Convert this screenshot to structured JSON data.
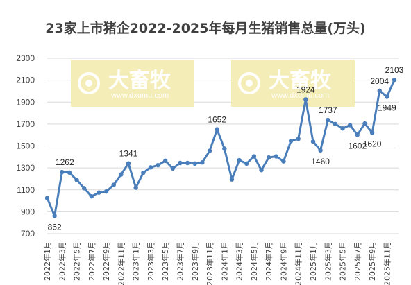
{
  "chart_data": {
    "type": "line",
    "title": "23家上市猪企2022-2025年每月生猪销售总量(万头)",
    "xlabel": "",
    "ylabel": "",
    "ylim": [
      700,
      2300
    ],
    "yticks": [
      700,
      900,
      1100,
      1300,
      1500,
      1700,
      1900,
      2100,
      2300
    ],
    "grid": true,
    "x_tick_labels": [
      "2022年1月",
      "2022年3月",
      "2022年5月",
      "2022年7月",
      "2022年9月",
      "2022年11月",
      "2023年1月",
      "2023年3月",
      "2023年5月",
      "2023年7月",
      "2023年9月",
      "2023年11月",
      "2024年1月",
      "2024年3月",
      "2024年5月",
      "2024年7月",
      "2024年9月",
      "2024年11月",
      "2025年1月",
      "2025年3月",
      "2025年5月",
      "2025年7月",
      "2025年9月",
      "2025年11月"
    ],
    "x": [
      "2022-01",
      "2022-02",
      "2022-03",
      "2022-04",
      "2022-05",
      "2022-06",
      "2022-07",
      "2022-08",
      "2022-09",
      "2022-10",
      "2022-11",
      "2022-12",
      "2023-01",
      "2023-02",
      "2023-03",
      "2023-04",
      "2023-05",
      "2023-06",
      "2023-07",
      "2023-08",
      "2023-09",
      "2023-10",
      "2023-11",
      "2023-12",
      "2024-01",
      "2024-02",
      "2024-03",
      "2024-04",
      "2024-05",
      "2024-06",
      "2024-07",
      "2024-08",
      "2024-09",
      "2024-10",
      "2024-11",
      "2024-12",
      "2025-01",
      "2025-02",
      "2025-03",
      "2025-04",
      "2025-05",
      "2025-06",
      "2025-07",
      "2025-08",
      "2025-09",
      "2025-10",
      "2025-11",
      "2025-12"
    ],
    "series": [
      {
        "values": [
          1025,
          862,
          1262,
          1258,
          1190,
          1115,
          1040,
          1075,
          1085,
          1145,
          1240,
          1341,
          1120,
          1255,
          1305,
          1325,
          1365,
          1295,
          1345,
          1345,
          1340,
          1350,
          1455,
          1652,
          1475,
          1195,
          1370,
          1340,
          1405,
          1280,
          1395,
          1405,
          1360,
          1545,
          1565,
          1924,
          1540,
          1460,
          1737,
          1700,
          1660,
          1690,
          1602,
          1705,
          1620,
          2004,
          1949,
          2103
        ],
        "color": "#4a7ebb"
      }
    ],
    "data_labels": [
      {
        "x": "2022-02",
        "text": "862"
      },
      {
        "x": "2022-03",
        "text": "1262"
      },
      {
        "x": "2022-12",
        "text": "1341"
      },
      {
        "x": "2023-12",
        "text": "1652"
      },
      {
        "x": "2024-12",
        "text": "1924"
      },
      {
        "x": "2025-02",
        "text": "1460"
      },
      {
        "x": "2025-03",
        "text": "1737"
      },
      {
        "x": "2025-07",
        "text": "1602"
      },
      {
        "x": "2025-09",
        "text": "1620"
      },
      {
        "x": "2025-10",
        "text": "2004"
      },
      {
        "x": "2025-11",
        "text": "1949"
      },
      {
        "x": "2025-12",
        "text": "2103"
      }
    ]
  },
  "watermark": {
    "text": "大畜牧",
    "url": "www.dxumu.com",
    "color": "#f5edb8"
  }
}
